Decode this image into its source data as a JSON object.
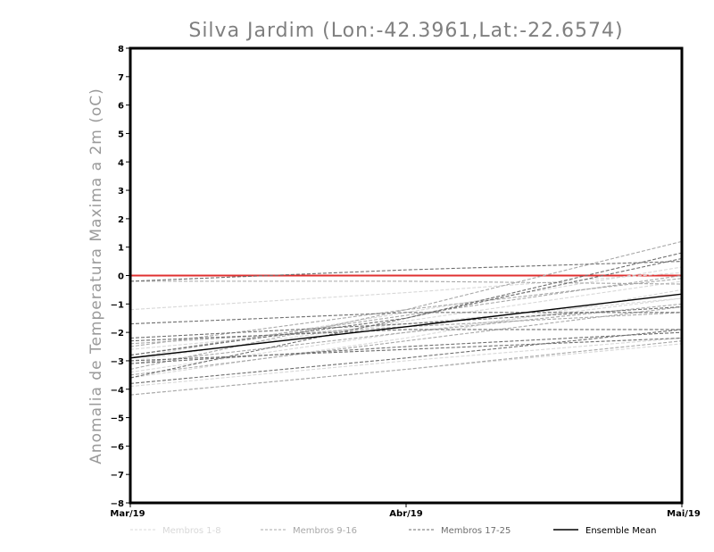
{
  "chart_data": {
    "type": "line",
    "title": "Silva Jardim (Lon:-42.3961,Lat:-22.6574)",
    "ylabel": "Anomalia de Temperatura Maxima a 2m (oC)",
    "xlabel": "",
    "categories": [
      "Mar/19",
      "Abr/19",
      "Mai/19"
    ],
    "ylim": [
      -8,
      8
    ],
    "yticks": [
      -8,
      -7,
      -6,
      -5,
      -4,
      -3,
      -2,
      -1,
      0,
      1,
      2,
      3,
      4,
      5,
      6,
      7,
      8
    ],
    "reference_line": {
      "value": 0,
      "color": "#e03030"
    },
    "legend": [
      {
        "label": "Membros 1-8",
        "color": "#d8d8d8",
        "style": "dashed"
      },
      {
        "label": "Membros 9-16",
        "color": "#a8a8a8",
        "style": "dashed"
      },
      {
        "label": "Membros 17-25",
        "color": "#6e6e6e",
        "style": "dashed"
      },
      {
        "label": "Ensemble Mean",
        "color": "#000000",
        "style": "solid"
      }
    ],
    "series": [
      {
        "name": "Membro 1",
        "group": 0,
        "values": [
          -4.2,
          -3.3,
          -2.4
        ]
      },
      {
        "name": "Membro 2",
        "group": 0,
        "values": [
          -3.6,
          -2.2,
          -0.5
        ]
      },
      {
        "name": "Membro 3",
        "group": 0,
        "values": [
          -1.2,
          -0.6,
          0.1
        ]
      },
      {
        "name": "Membro 4",
        "group": 0,
        "values": [
          -3.0,
          -1.6,
          -0.2
        ]
      },
      {
        "name": "Membro 5",
        "group": 0,
        "values": [
          -2.6,
          -1.7,
          -0.8
        ]
      },
      {
        "name": "Membro 6",
        "group": 0,
        "values": [
          -3.9,
          -3.0,
          -2.2
        ]
      },
      {
        "name": "Membro 7",
        "group": 0,
        "values": [
          -2.9,
          -1.3,
          0.3
        ]
      },
      {
        "name": "Membro 8",
        "group": 0,
        "values": [
          -3.4,
          -2.0,
          -0.8
        ]
      },
      {
        "name": "Membro 9",
        "group": 1,
        "values": [
          -3.3,
          -1.2,
          1.2
        ]
      },
      {
        "name": "Membro 10",
        "group": 1,
        "values": [
          -2.5,
          -1.2,
          -0.1
        ]
      },
      {
        "name": "Membro 11",
        "group": 1,
        "values": [
          -4.2,
          -3.3,
          -2.3
        ]
      },
      {
        "name": "Membro 12",
        "group": 1,
        "values": [
          -3.5,
          -2.3,
          -1.1
        ]
      },
      {
        "name": "Membro 13",
        "group": 1,
        "values": [
          -2.4,
          -1.8,
          -1.3
        ]
      },
      {
        "name": "Membro 14",
        "group": 1,
        "values": [
          -3.1,
          -2.0,
          -1.0
        ]
      },
      {
        "name": "Membro 15",
        "group": 1,
        "values": [
          -0.2,
          -0.2,
          -0.3
        ]
      },
      {
        "name": "Membro 16",
        "group": 1,
        "values": [
          -2.8,
          -1.4,
          0.0
        ]
      },
      {
        "name": "Membro 17",
        "group": 2,
        "values": [
          -1.7,
          -1.3,
          -1.3
        ]
      },
      {
        "name": "Membro 18",
        "group": 2,
        "values": [
          -3.8,
          -2.9,
          -1.9
        ]
      },
      {
        "name": "Membro 19",
        "group": 2,
        "values": [
          -2.8,
          -1.5,
          0.6
        ]
      },
      {
        "name": "Membro 20",
        "group": 2,
        "values": [
          -0.2,
          0.2,
          0.5
        ]
      },
      {
        "name": "Membro 21",
        "group": 2,
        "values": [
          -3.1,
          -2.5,
          -2.0
        ]
      },
      {
        "name": "Membro 22",
        "group": 2,
        "values": [
          -2.2,
          -1.7,
          -1.1
        ]
      },
      {
        "name": "Membro 23",
        "group": 2,
        "values": [
          -3.6,
          -1.5,
          0.8
        ]
      },
      {
        "name": "Membro 24",
        "group": 2,
        "values": [
          -2.3,
          -1.9,
          -1.9
        ]
      },
      {
        "name": "Membro 25",
        "group": 2,
        "values": [
          -3.0,
          -2.6,
          -2.2
        ]
      },
      {
        "name": "Ensemble Mean",
        "group": 3,
        "values": [
          -2.9,
          -1.8,
          -0.65
        ]
      }
    ]
  }
}
